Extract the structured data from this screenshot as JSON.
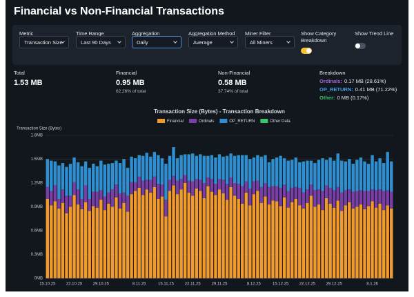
{
  "header": {
    "title": "Financial vs Non-Financial Transactions"
  },
  "controls": [
    {
      "label": "Metric",
      "value": "Transaction Size"
    },
    {
      "label": "Time Range",
      "value": "Last 90 Days"
    },
    {
      "label": "Aggregation",
      "value": "Daily"
    },
    {
      "label": "Aggregation Method",
      "value": "Average"
    },
    {
      "label": "Miner Filter",
      "value": "All Miners"
    }
  ],
  "toggles": [
    {
      "label": "Show Category Breakdown",
      "on": true
    },
    {
      "label": "Show Trend Line",
      "on": false
    }
  ],
  "stats": [
    {
      "label": "Total",
      "value": "1.53 MB"
    },
    {
      "label": "Financial",
      "value": "0.95 MB",
      "sub": "62.26% of total"
    },
    {
      "label": "Non-Financial",
      "value": "0.58 MB",
      "sub": "37.74% of total"
    }
  ],
  "breakdown": {
    "label": "Breakdown",
    "items": [
      {
        "name": "Ordinals:",
        "value": "0.17 MB (28.61%)",
        "color": "#a463d6"
      },
      {
        "name": "OP_RETURN:",
        "value": "0.41 MB (71.22%)",
        "color": "#3d9be0"
      },
      {
        "name": "Other:",
        "value": "0 MB (0.17%)",
        "color": "#3cc46e"
      }
    ]
  },
  "chart_data": {
    "type": "stacked_bar",
    "title": "Transaction Size (Bytes) - Transaction Breakdown",
    "y_label": "Transaction Size (Bytes)",
    "categories": [
      "15.10.25",
      null,
      null,
      null,
      null,
      null,
      null,
      "22.10.25",
      null,
      null,
      null,
      null,
      null,
      null,
      "29.10.25",
      null,
      null,
      null,
      null,
      null,
      null,
      null,
      null,
      null,
      "8.11.25",
      null,
      null,
      null,
      null,
      null,
      null,
      "15.11.25",
      null,
      null,
      null,
      null,
      null,
      null,
      "22.11.25",
      null,
      null,
      null,
      null,
      null,
      null,
      "29.11.25",
      null,
      null,
      null,
      null,
      null,
      null,
      null,
      null,
      "8.12.25",
      null,
      null,
      null,
      null,
      null,
      null,
      "15.12.25",
      null,
      null,
      null,
      null,
      null,
      null,
      "22.12.25",
      null,
      null,
      null,
      null,
      null,
      null,
      "29.12.25",
      null,
      null,
      null,
      null,
      null,
      null,
      null,
      null,
      null,
      "8.1.26",
      null,
      null,
      null,
      null,
      null
    ],
    "series": [
      {
        "name": "Financial",
        "color": "#f39a2c",
        "values": [
          1.0,
          0.92,
          0.97,
          0.88,
          0.95,
          0.82,
          0.9,
          1.05,
          0.93,
          0.87,
          0.96,
          0.85,
          0.91,
          0.89,
          0.99,
          0.86,
          0.94,
          0.9,
          1.02,
          0.88,
          0.95,
          0.84,
          1.06,
          1.1,
          1.14,
          1.05,
          1.12,
          1.08,
          1.15,
          1.0,
          1.03,
          0.78,
          1.1,
          1.17,
          1.06,
          1.12,
          1.2,
          1.08,
          1.04,
          1.13,
          1.1,
          1.01,
          1.16,
          1.09,
          1.05,
          1.12,
          1.07,
          0.99,
          1.15,
          1.04,
          1.0,
          0.94,
          1.08,
          0.92,
          1.06,
          1.1,
          0.95,
          1.03,
          0.93,
          0.98,
          0.97,
          0.91,
          1.02,
          0.89,
          0.96,
          1.0,
          0.92,
          0.88,
          0.95,
          1.04,
          0.9,
          0.93,
          0.86,
          1.01,
          0.94,
          0.89,
          0.98,
          0.85,
          0.92,
          0.96,
          0.88,
          0.9,
          0.93,
          0.87,
          0.91,
          0.97,
          0.89,
          0.94,
          0.86,
          0.92,
          0.88
        ]
      },
      {
        "name": "Ordinals",
        "color": "#7a3fa6",
        "values": [
          0.15,
          0.18,
          0.2,
          0.12,
          0.17,
          0.22,
          0.14,
          0.16,
          0.19,
          0.13,
          0.21,
          0.15,
          0.18,
          0.2,
          0.12,
          0.17,
          0.14,
          0.22,
          0.16,
          0.19,
          0.13,
          0.2,
          0.15,
          0.11,
          0.14,
          0.18,
          0.12,
          0.16,
          0.13,
          0.19,
          0.15,
          0.21,
          0.14,
          0.12,
          0.17,
          0.13,
          0.1,
          0.15,
          0.18,
          0.12,
          0.14,
          0.19,
          0.11,
          0.16,
          0.14,
          0.13,
          0.17,
          0.2,
          0.12,
          0.16,
          0.19,
          0.22,
          0.14,
          0.21,
          0.16,
          0.13,
          0.2,
          0.17,
          0.22,
          0.18,
          0.19,
          0.23,
          0.16,
          0.21,
          0.18,
          0.15,
          0.22,
          0.2,
          0.17,
          0.14,
          0.21,
          0.19,
          0.24,
          0.16,
          0.2,
          0.22,
          0.17,
          0.23,
          0.19,
          0.16,
          0.21,
          0.2,
          0.18,
          0.23,
          0.19,
          0.15,
          0.22,
          0.18,
          0.24,
          0.19,
          0.21
        ]
      },
      {
        "name": "OP_RETURN",
        "color": "#2f8fd3",
        "values": [
          0.35,
          0.38,
          0.3,
          0.42,
          0.33,
          0.36,
          0.4,
          0.31,
          0.34,
          0.41,
          0.3,
          0.39,
          0.35,
          0.32,
          0.37,
          0.4,
          0.36,
          0.33,
          0.3,
          0.38,
          0.42,
          0.35,
          0.32,
          0.3,
          0.27,
          0.31,
          0.34,
          0.29,
          0.31,
          0.36,
          0.33,
          0.45,
          0.3,
          0.36,
          0.28,
          0.3,
          0.26,
          0.33,
          0.35,
          0.29,
          0.32,
          0.34,
          0.27,
          0.3,
          0.33,
          0.31,
          0.29,
          0.35,
          0.3,
          0.34,
          0.36,
          0.39,
          0.33,
          0.37,
          0.3,
          0.32,
          0.38,
          0.35,
          0.31,
          0.34,
          0.36,
          0.4,
          0.33,
          0.38,
          0.35,
          0.37,
          0.32,
          0.39,
          0.36,
          0.3,
          0.34,
          0.37,
          0.41,
          0.32,
          0.38,
          0.37,
          0.42,
          0.4,
          0.36,
          0.38,
          0.35,
          0.39,
          0.41,
          0.37,
          0.34,
          0.43,
          0.36,
          0.39,
          0.35,
          0.48,
          0.38
        ]
      },
      {
        "name": "Other Data",
        "color": "#3cc46e",
        "values": [
          0.002,
          0.002,
          0.002,
          0.002,
          0.002,
          0.002,
          0.002,
          0.002,
          0.002,
          0.002,
          0.002,
          0.002,
          0.002,
          0.002,
          0.002,
          0.002,
          0.002,
          0.002,
          0.002,
          0.002,
          0.002,
          0.002,
          0.002,
          0.002,
          0.002,
          0.002,
          0.002,
          0.002,
          0.002,
          0.002,
          0.002,
          0.002,
          0.002,
          0.002,
          0.002,
          0.002,
          0.002,
          0.002,
          0.002,
          0.002,
          0.002,
          0.002,
          0.002,
          0.002,
          0.002,
          0.002,
          0.002,
          0.002,
          0.002,
          0.002,
          0.002,
          0.002,
          0.002,
          0.002,
          0.002,
          0.002,
          0.002,
          0.002,
          0.002,
          0.002,
          0.002,
          0.002,
          0.002,
          0.002,
          0.002,
          0.002,
          0.002,
          0.002,
          0.002,
          0.002,
          0.002,
          0.002,
          0.002,
          0.002,
          0.002,
          0.002,
          0.002,
          0.002,
          0.002,
          0.002,
          0.002,
          0.002,
          0.002,
          0.002,
          0.002,
          0.002,
          0.002,
          0.002,
          0.002,
          0.002,
          0.002
        ]
      }
    ],
    "ylim": [
      0,
      1.8
    ],
    "yticks": [
      {
        "value": 0,
        "label": "0MB"
      },
      {
        "value": 0.3,
        "label": "0.3MB"
      },
      {
        "value": 0.6,
        "label": "0.6MB"
      },
      {
        "value": 0.9,
        "label": "0.9MB"
      },
      {
        "value": 1.2,
        "label": "1.2MB"
      },
      {
        "value": 1.5,
        "label": "1.5MB"
      },
      {
        "value": 1.8,
        "label": "1.8MB"
      }
    ],
    "grid": true
  }
}
